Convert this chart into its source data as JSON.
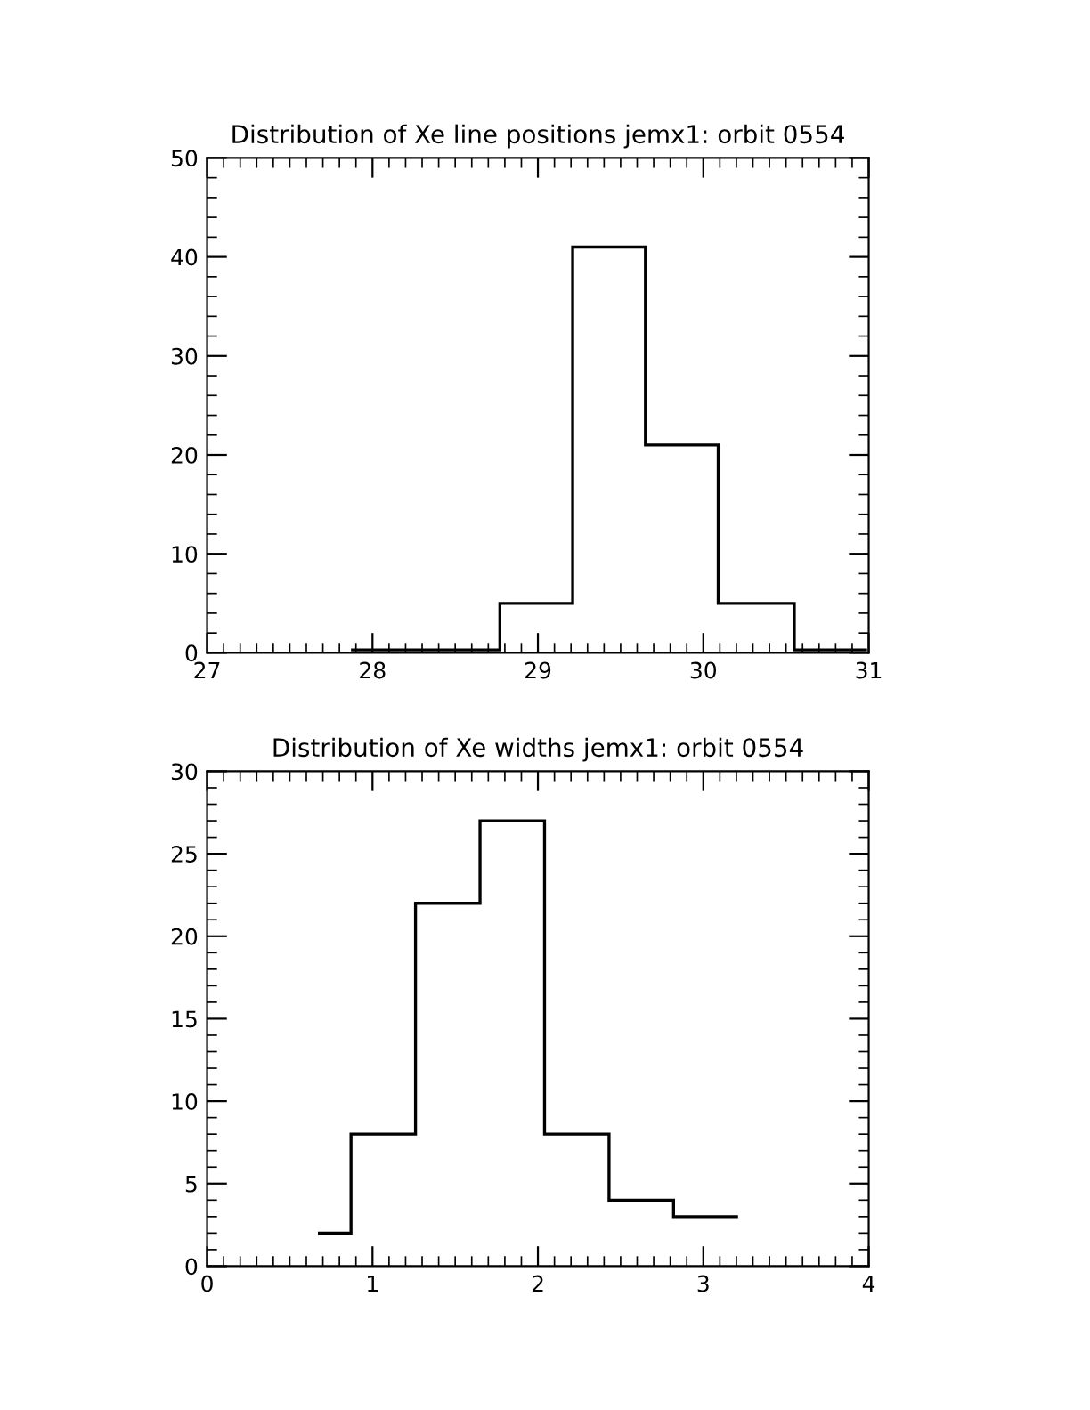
{
  "chart_data": [
    {
      "type": "histogram",
      "title": "Distribution of Xe line positions jemx1: orbit 0554",
      "bins": [
        27.87,
        28.32,
        28.77,
        29.21,
        29.65,
        30.09,
        30.55,
        30.99
      ],
      "values": [
        0.3,
        0.3,
        5,
        41,
        21,
        5,
        0.3
      ],
      "color": "#000000",
      "xlim": [
        27,
        31
      ],
      "xticks": [
        27,
        28,
        29,
        30,
        31
      ],
      "ylim": [
        0,
        50
      ],
      "yticks": [
        0,
        10,
        20,
        30,
        40,
        50
      ],
      "grid": false
    },
    {
      "type": "histogram",
      "title": "Distribution of Xe widths jemx1: orbit 0554",
      "bins": [
        0.67,
        0.87,
        1.26,
        1.65,
        2.04,
        2.43,
        2.82,
        3.21
      ],
      "values": [
        2,
        8,
        22,
        27,
        8,
        4,
        3
      ],
      "color": "#000000",
      "xlim": [
        0,
        4
      ],
      "xticks": [
        0,
        1,
        2,
        3,
        4
      ],
      "ylim": [
        0,
        30
      ],
      "yticks": [
        0,
        5,
        10,
        15,
        20,
        25,
        30
      ],
      "grid": false
    }
  ]
}
